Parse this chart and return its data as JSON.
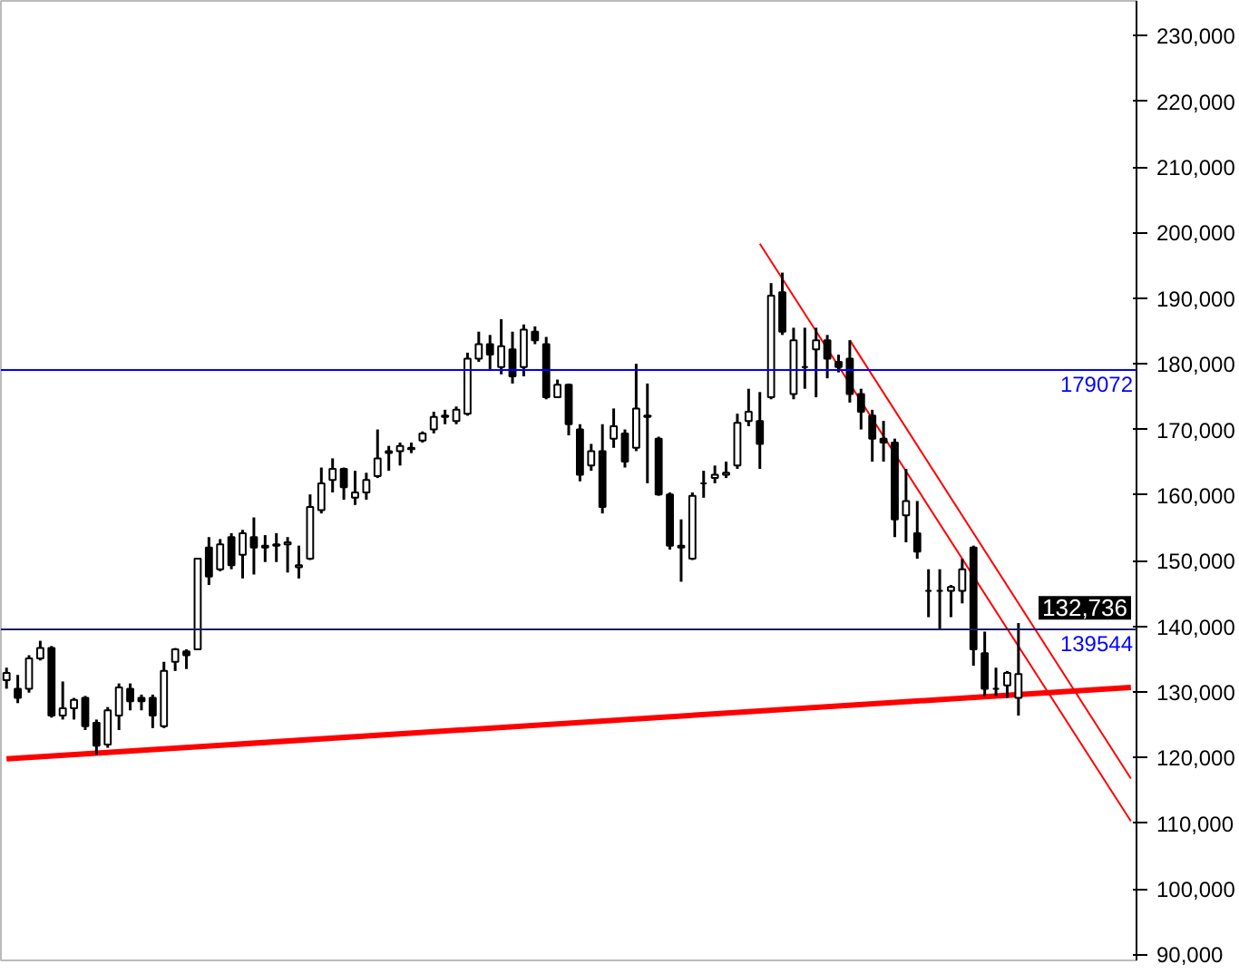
{
  "chart_data": {
    "type": "candlestick",
    "color": "#000000",
    "tick_labels": "y",
    "categories": [
      null,
      null,
      null,
      null,
      null,
      null,
      null,
      null,
      null,
      null,
      null,
      null,
      null,
      null,
      null,
      null,
      null,
      null,
      null,
      null,
      null,
      null,
      null,
      null,
      null,
      null,
      null,
      null,
      null,
      null,
      null,
      null,
      null,
      null,
      null,
      null,
      null,
      null,
      null,
      null,
      null,
      null,
      null,
      null,
      null,
      null,
      null,
      null,
      null,
      null,
      null,
      null,
      null,
      null,
      null,
      null,
      null,
      null,
      null,
      null,
      null,
      null,
      null,
      null,
      null,
      null,
      null,
      null,
      null,
      null,
      null,
      null,
      null,
      null,
      null,
      null,
      null,
      null,
      null,
      null,
      null,
      null,
      null,
      null,
      null,
      null,
      null,
      null,
      null,
      null,
      null,
      null,
      null,
      null,
      null,
      null,
      null,
      null,
      null,
      null,
      null
    ],
    "ohlc": [
      [
        131800,
        133700,
        130500,
        132900
      ],
      [
        130500,
        132600,
        128300,
        129100
      ],
      [
        130500,
        135600,
        129900,
        135100
      ],
      [
        135100,
        137800,
        134800,
        136700
      ],
      [
        136700,
        137000,
        126100,
        126400
      ],
      [
        126400,
        131600,
        125800,
        127500
      ],
      [
        127500,
        129100,
        125800,
        128800
      ],
      [
        129100,
        129400,
        124200,
        124800
      ],
      [
        125300,
        125800,
        120400,
        121800
      ],
      [
        122000,
        127700,
        121500,
        127200
      ],
      [
        126400,
        131300,
        124200,
        130700
      ],
      [
        130500,
        131300,
        127200,
        128600
      ],
      [
        129100,
        129600,
        127200,
        128600
      ],
      [
        129100,
        129600,
        124500,
        126400
      ],
      [
        124800,
        134600,
        124500,
        133200
      ],
      [
        134600,
        136700,
        133200,
        136500
      ],
      [
        136200,
        136500,
        133500,
        135600
      ],
      [
        136500,
        150300,
        136500,
        150300
      ],
      [
        152000,
        153600,
        146300,
        147600
      ],
      [
        148700,
        153300,
        148400,
        152500
      ],
      [
        153600,
        154200,
        148700,
        149300
      ],
      [
        150900,
        154700,
        147300,
        154200
      ],
      [
        153600,
        156600,
        147900,
        152000
      ],
      [
        152000,
        153900,
        149800,
        152300
      ],
      [
        152300,
        154200,
        149800,
        152500
      ],
      [
        152500,
        153600,
        148200,
        152800
      ],
      [
        149000,
        152300,
        147300,
        149300
      ],
      [
        150300,
        160100,
        150100,
        158200
      ],
      [
        157700,
        164200,
        157200,
        161800
      ],
      [
        162300,
        165600,
        160400,
        164000
      ],
      [
        164000,
        164200,
        159300,
        161200
      ],
      [
        159600,
        163700,
        158500,
        160400
      ],
      [
        160400,
        163400,
        159300,
        162300
      ],
      [
        162900,
        170000,
        162600,
        165600
      ],
      [
        166400,
        167500,
        163700,
        166700
      ],
      [
        166700,
        168000,
        164500,
        167500
      ],
      [
        167200,
        168000,
        166400,
        167000
      ],
      [
        168300,
        169700,
        168000,
        169400
      ],
      [
        170000,
        172700,
        169400,
        171900
      ],
      [
        171900,
        173000,
        170800,
        172100
      ],
      [
        171300,
        173500,
        170800,
        173000
      ],
      [
        172400,
        181700,
        172100,
        180800
      ],
      [
        180800,
        184900,
        180300,
        183000
      ],
      [
        183000,
        184400,
        179200,
        181400
      ],
      [
        179500,
        186800,
        178400,
        182700
      ],
      [
        182200,
        184900,
        177000,
        178100
      ],
      [
        179500,
        186000,
        178100,
        185200
      ],
      [
        184900,
        185700,
        183000,
        183600
      ],
      [
        183000,
        184100,
        174600,
        174900
      ],
      [
        174900,
        177600,
        174900,
        176800
      ],
      [
        176800,
        177000,
        169100,
        170800
      ],
      [
        170000,
        170800,
        162100,
        163100
      ],
      [
        164500,
        167800,
        163700,
        166700
      ],
      [
        166700,
        170800,
        157200,
        158200
      ],
      [
        168600,
        173200,
        167200,
        170500
      ],
      [
        169400,
        170000,
        164200,
        165100
      ],
      [
        167200,
        180000,
        166700,
        173200
      ],
      [
        172100,
        177000,
        161800,
        171900
      ],
      [
        168600,
        168900,
        159900,
        160100
      ],
      [
        160100,
        160400,
        151700,
        152300
      ],
      [
        152300,
        156300,
        146800,
        152000
      ],
      [
        150300,
        160400,
        150100,
        159900
      ],
      [
        161800,
        163700,
        159600,
        161800
      ],
      [
        162600,
        164500,
        161800,
        163100
      ],
      [
        163100,
        165100,
        162600,
        163400
      ],
      [
        164500,
        172400,
        164000,
        171000
      ],
      [
        171300,
        176200,
        170500,
        172700
      ],
      [
        171300,
        175700,
        164000,
        167800
      ],
      [
        174900,
        192300,
        174600,
        190400
      ],
      [
        190900,
        193900,
        184400,
        184900
      ],
      [
        175400,
        185500,
        174600,
        183600
      ],
      [
        179500,
        185500,
        176200,
        179500
      ],
      [
        182200,
        185500,
        174900,
        183600
      ],
      [
        183600,
        184400,
        177800,
        180800
      ],
      [
        180300,
        181400,
        178700,
        179500
      ],
      [
        180800,
        183600,
        174100,
        175400
      ],
      [
        175400,
        176200,
        170000,
        172700
      ],
      [
        172100,
        173000,
        165100,
        168600
      ],
      [
        168600,
        171300,
        165100,
        168000
      ],
      [
        168000,
        168600,
        153600,
        156300
      ],
      [
        156900,
        164000,
        152800,
        159100
      ],
      [
        154200,
        159100,
        150300,
        151400
      ],
      [
        145400,
        148700,
        141400,
        145400
      ],
      [
        145400,
        148700,
        139500,
        145400
      ],
      [
        145400,
        146300,
        141400,
        146000
      ],
      [
        145400,
        150300,
        143500,
        148700
      ],
      [
        152000,
        152300,
        134000,
        136500
      ],
      [
        135900,
        139200,
        129400,
        130500
      ],
      [
        130500,
        133700,
        129400,
        130500
      ],
      [
        131000,
        133200,
        129100,
        132900
      ],
      [
        129100,
        140500,
        126400,
        132736
      ],
      null,
      null,
      null,
      null,
      null,
      null,
      null,
      null,
      null,
      null
    ],
    "series": [
      {
        "type": "line",
        "color": "#ff0000",
        "values": [
          119800,
          null,
          null,
          null,
          null,
          null,
          null,
          null,
          null,
          null,
          null,
          null,
          null,
          null,
          null,
          null,
          null,
          null,
          null,
          null,
          null,
          null,
          null,
          null,
          null,
          null,
          null,
          null,
          null,
          null,
          null,
          null,
          null,
          null,
          null,
          null,
          null,
          null,
          null,
          null,
          null,
          null,
          null,
          null,
          null,
          null,
          null,
          null,
          null,
          null,
          null,
          null,
          null,
          null,
          null,
          null,
          null,
          null,
          null,
          null,
          null,
          null,
          null,
          null,
          null,
          null,
          null,
          null,
          null,
          null,
          null,
          null,
          null,
          null,
          null,
          null,
          null,
          null,
          null,
          null,
          null,
          null,
          null,
          null,
          null,
          null,
          null,
          null,
          null,
          null,
          null,
          null,
          null,
          null,
          null,
          null,
          null,
          null,
          null,
          null,
          130700
        ]
      },
      {
        "type": "line",
        "color": "#ff0000",
        "values": [
          null,
          null,
          null,
          null,
          null,
          null,
          null,
          null,
          null,
          null,
          null,
          null,
          null,
          null,
          null,
          null,
          null,
          null,
          null,
          null,
          null,
          null,
          null,
          null,
          null,
          null,
          null,
          null,
          null,
          null,
          null,
          null,
          null,
          null,
          null,
          null,
          null,
          null,
          null,
          null,
          null,
          null,
          null,
          null,
          null,
          null,
          null,
          null,
          null,
          null,
          null,
          null,
          null,
          null,
          null,
          null,
          null,
          null,
          null,
          null,
          null,
          null,
          null,
          null,
          null,
          null,
          null,
          198300,
          null,
          null,
          null,
          null,
          null,
          null,
          null,
          null,
          null,
          null,
          null,
          null,
          null,
          null,
          null,
          null,
          null,
          null,
          null,
          null,
          null,
          null,
          null,
          null,
          null,
          null,
          null,
          null,
          null,
          null,
          null,
          null,
          110300
        ]
      },
      {
        "type": "line",
        "color": "#ff0000",
        "values": [
          null,
          null,
          null,
          null,
          null,
          null,
          null,
          null,
          null,
          null,
          null,
          null,
          null,
          null,
          null,
          null,
          null,
          null,
          null,
          null,
          null,
          null,
          null,
          null,
          null,
          null,
          null,
          null,
          null,
          null,
          null,
          null,
          null,
          null,
          null,
          null,
          null,
          null,
          null,
          null,
          null,
          null,
          null,
          null,
          null,
          null,
          null,
          null,
          null,
          null,
          null,
          null,
          null,
          null,
          null,
          null,
          null,
          null,
          null,
          null,
          null,
          null,
          null,
          null,
          null,
          null,
          null,
          null,
          null,
          null,
          null,
          null,
          null,
          null,
          null,
          183600,
          null,
          null,
          null,
          null,
          null,
          null,
          null,
          null,
          null,
          null,
          null,
          null,
          null,
          null,
          null,
          null,
          null,
          null,
          null,
          null,
          null,
          null,
          null,
          null,
          116800
        ]
      }
    ],
    "ylim": [
      89100,
      235300
    ],
    "yticks": [
      {
        "value": 90000,
        "label": "90,000"
      },
      {
        "value": 100000,
        "label": "100,000"
      },
      {
        "value": 110000,
        "label": "110,000"
      },
      {
        "value": 120000,
        "label": "120,000"
      },
      {
        "value": 130000,
        "label": "130,000"
      },
      {
        "value": 140000,
        "label": "140,000"
      },
      {
        "value": 150000,
        "label": "150,000"
      },
      {
        "value": 160000,
        "label": "160,000"
      },
      {
        "value": 170000,
        "label": "170,000"
      },
      {
        "value": 180000,
        "label": "180,000"
      },
      {
        "value": 190000,
        "label": "190,000"
      },
      {
        "value": 200000,
        "label": "200,000"
      },
      {
        "value": 210000,
        "label": "210,000"
      },
      {
        "value": 220000,
        "label": "220,000"
      },
      {
        "value": 230000,
        "label": "230,000"
      }
    ],
    "ref_lines": [
      {
        "axis": "y",
        "value": 179072,
        "label": "179072",
        "color": "#0000ff"
      },
      {
        "axis": "y",
        "value": 139544,
        "label": "139544",
        "color": "#1a1a66"
      }
    ],
    "annotations": [
      "132,736"
    ]
  }
}
